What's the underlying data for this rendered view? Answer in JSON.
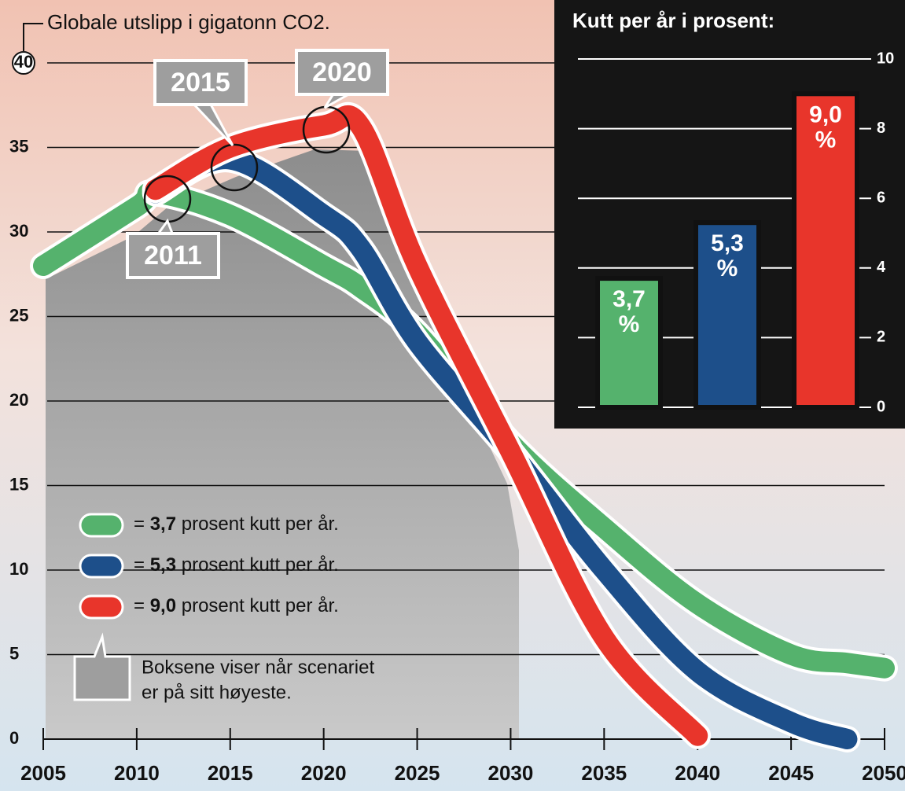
{
  "chart_data": [
    {
      "type": "line",
      "title": "Globale utslipp i gigatonn CO2.",
      "x": [
        2005,
        2010,
        2011,
        2015,
        2020,
        2022,
        2025,
        2030,
        2035,
        2040,
        2045,
        2048,
        2050
      ],
      "series": [
        {
          "name": "3,7",
          "color": "#55b26d",
          "values": [
            28,
            31.5,
            32.3,
            31,
            28,
            26.7,
            24,
            17.5,
            12.5,
            8,
            5,
            4.5,
            4.2
          ]
        },
        {
          "name": "5,3",
          "color": "#1d4f8a",
          "values": [
            null,
            null,
            32.3,
            34.3,
            31,
            29,
            23.5,
            17,
            10,
            4,
            1,
            0,
            null
          ]
        },
        {
          "name": "9,0",
          "color": "#e8352b",
          "values": [
            null,
            null,
            32.5,
            35,
            36.3,
            36.2,
            28,
            17,
            6,
            0.2,
            null,
            null,
            null
          ]
        }
      ],
      "legend_prefix": "=",
      "legend_suffix": "prosent kutt per år.",
      "annotations": [
        "2011",
        "2015",
        "2020"
      ],
      "note": [
        "Boksene viser når scenariet",
        "er på sitt høyeste."
      ],
      "xlim": [
        2005,
        2050
      ],
      "xticks": [
        2005,
        2010,
        2015,
        2020,
        2025,
        2030,
        2035,
        2040,
        2045,
        2050
      ],
      "ylim": [
        0,
        40
      ],
      "yticks": [
        0,
        5,
        10,
        15,
        20,
        25,
        30,
        35,
        40
      ],
      "grid": true
    },
    {
      "type": "bar",
      "title": "Kutt per år i prosent:",
      "categories": [
        null,
        null,
        null
      ],
      "values": [
        3.7,
        5.3,
        9.0
      ],
      "value_labels": [
        "3,7 %",
        "5,3 %",
        "9,0 %"
      ],
      "colors": [
        "#55b26d",
        "#1d4f8a",
        "#e8352b"
      ],
      "ylim": [
        0,
        10
      ],
      "yticks": [
        0,
        2,
        4,
        6,
        8,
        10
      ],
      "grid": true
    }
  ]
}
